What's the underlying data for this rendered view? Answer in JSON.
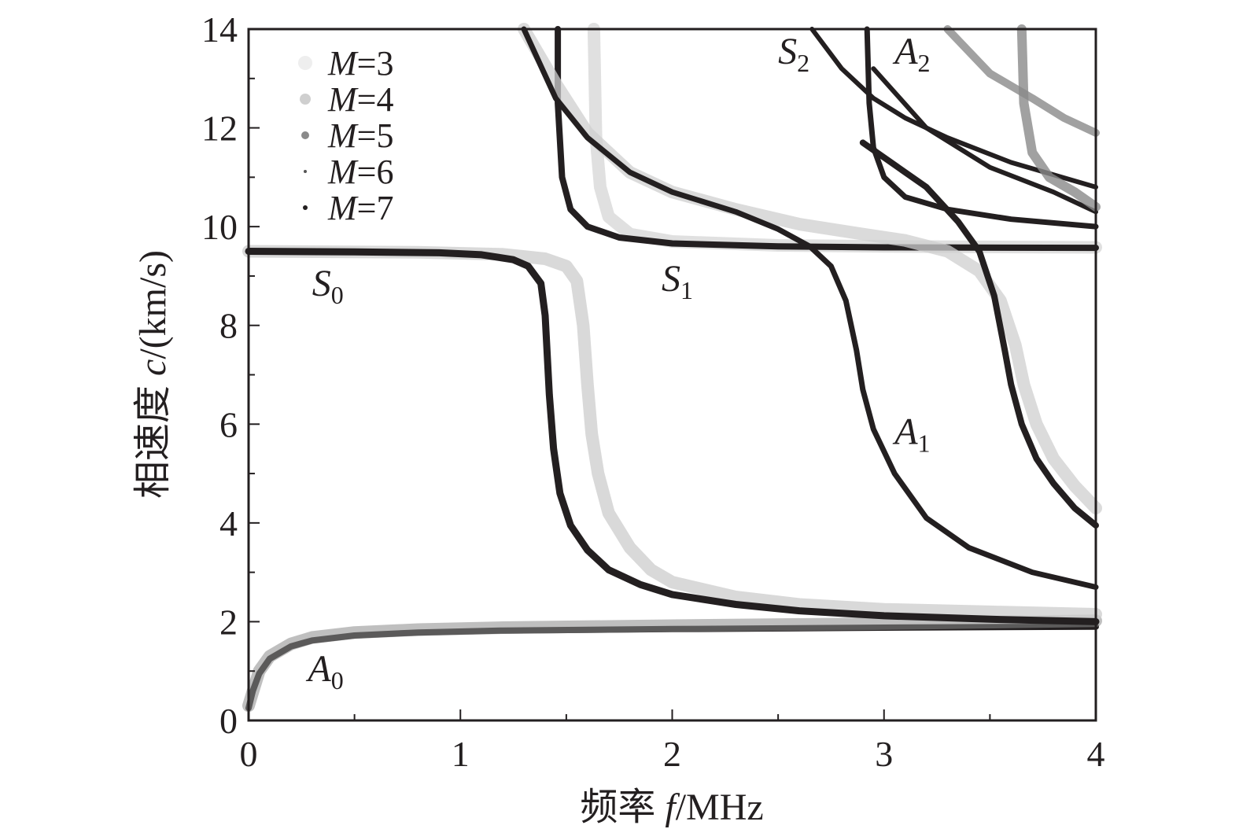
{
  "chart_data": {
    "type": "scatter",
    "xlabel": {
      "prefix": "频率 ",
      "var": "f",
      "unit": "/MHz"
    },
    "ylabel": {
      "prefix": "相速度 ",
      "var": "c",
      "unit": "/(km/s)"
    },
    "xlim": [
      0,
      4
    ],
    "ylim": [
      0,
      14
    ],
    "x_ticks": [
      "0",
      "1",
      "2",
      "3",
      "4"
    ],
    "y_ticks": [
      "0",
      "2",
      "4",
      "6",
      "8",
      "10",
      "12",
      "14"
    ],
    "grid": false,
    "legend_position": "top-left",
    "legend": [
      {
        "var": "M",
        "text": "=3",
        "color": "#eeeeee"
      },
      {
        "var": "M",
        "text": "=4",
        "color": "#cfcfcf"
      },
      {
        "var": "M",
        "text": "=5",
        "color": "#8a8a8a"
      },
      {
        "var": "M",
        "text": "=6",
        "color": "#555555"
      },
      {
        "var": "M",
        "text": "=7",
        "color": "#231f20"
      }
    ],
    "mode_labels": [
      {
        "letter": "S",
        "sub": "0",
        "x": 0.3,
        "y": 8.6
      },
      {
        "letter": "S",
        "sub": "1",
        "x": 1.95,
        "y": 8.7
      },
      {
        "letter": "S",
        "sub": "2",
        "x": 2.5,
        "y": 13.3
      },
      {
        "letter": "A",
        "sub": "0",
        "x": 0.28,
        "y": 0.8
      },
      {
        "letter": "A",
        "sub": "1",
        "x": 3.05,
        "y": 5.6
      },
      {
        "letter": "A",
        "sub": "2",
        "x": 3.05,
        "y": 13.3
      }
    ],
    "series": [
      {
        "mode": "A0",
        "color": "#231f20",
        "width": 8,
        "points": [
          [
            0.0,
            0.25
          ],
          [
            0.02,
            0.6
          ],
          [
            0.05,
            0.95
          ],
          [
            0.1,
            1.25
          ],
          [
            0.2,
            1.5
          ],
          [
            0.3,
            1.62
          ],
          [
            0.5,
            1.72
          ],
          [
            0.8,
            1.78
          ],
          [
            1.2,
            1.82
          ],
          [
            2,
            1.85
          ],
          [
            3,
            1.88
          ],
          [
            4,
            1.9
          ]
        ]
      },
      {
        "mode": "A0",
        "color": "#8a8a8a",
        "width": 16,
        "opacity": 0.55,
        "points": [
          [
            0.0,
            0.3
          ],
          [
            0.05,
            1.0
          ],
          [
            0.1,
            1.3
          ],
          [
            0.2,
            1.55
          ],
          [
            0.3,
            1.68
          ],
          [
            0.5,
            1.78
          ],
          [
            0.8,
            1.84
          ],
          [
            1.2,
            1.88
          ],
          [
            2,
            1.92
          ],
          [
            3,
            1.96
          ],
          [
            4,
            2.02
          ]
        ]
      },
      {
        "mode": "S0",
        "color": "#cfcfcf",
        "width": 16,
        "opacity": 0.8,
        "points": [
          [
            0.0,
            9.5
          ],
          [
            0.8,
            9.48
          ],
          [
            1.2,
            9.44
          ],
          [
            1.4,
            9.35
          ],
          [
            1.5,
            9.2
          ],
          [
            1.55,
            8.9
          ],
          [
            1.58,
            8.0
          ],
          [
            1.6,
            6.8
          ],
          [
            1.62,
            5.8
          ],
          [
            1.65,
            5.0
          ],
          [
            1.7,
            4.2
          ],
          [
            1.8,
            3.5
          ],
          [
            1.9,
            3.05
          ],
          [
            2,
            2.8
          ],
          [
            2.3,
            2.5
          ],
          [
            2.6,
            2.35
          ],
          [
            3,
            2.25
          ],
          [
            3.5,
            2.2
          ],
          [
            4,
            2.15
          ]
        ]
      },
      {
        "mode": "S0",
        "color": "#231f20",
        "width": 9,
        "points": [
          [
            0.0,
            9.5
          ],
          [
            0.5,
            9.49
          ],
          [
            0.9,
            9.47
          ],
          [
            1.1,
            9.43
          ],
          [
            1.25,
            9.33
          ],
          [
            1.32,
            9.2
          ],
          [
            1.38,
            8.85
          ],
          [
            1.4,
            8.2
          ],
          [
            1.42,
            6.6
          ],
          [
            1.44,
            5.5
          ],
          [
            1.47,
            4.6
          ],
          [
            1.52,
            3.95
          ],
          [
            1.6,
            3.45
          ],
          [
            1.7,
            3.05
          ],
          [
            1.85,
            2.75
          ],
          [
            2,
            2.55
          ],
          [
            2.3,
            2.35
          ],
          [
            2.6,
            2.22
          ],
          [
            3,
            2.12
          ],
          [
            3.5,
            2.05
          ],
          [
            4,
            2.0
          ]
        ]
      },
      {
        "mode": "S1",
        "color": "#dddddd",
        "width": 16,
        "opacity": 0.9,
        "points": [
          [
            1.63,
            14
          ],
          [
            1.64,
            11.8
          ],
          [
            1.66,
            10.8
          ],
          [
            1.7,
            10.2
          ],
          [
            1.8,
            9.85
          ],
          [
            2,
            9.7
          ],
          [
            2.5,
            9.62
          ],
          [
            3,
            9.6
          ],
          [
            4,
            9.58
          ]
        ]
      },
      {
        "mode": "S1",
        "color": "#231f20",
        "width": 8,
        "points": [
          [
            1.46,
            14
          ],
          [
            1.46,
            12.5
          ],
          [
            1.48,
            11.0
          ],
          [
            1.52,
            10.35
          ],
          [
            1.6,
            10.0
          ],
          [
            1.75,
            9.78
          ],
          [
            2,
            9.66
          ],
          [
            2.5,
            9.6
          ],
          [
            3,
            9.58
          ],
          [
            4,
            9.57
          ]
        ]
      },
      {
        "mode": "A1",
        "color": "#cfcfcf",
        "width": 16,
        "opacity": 0.75,
        "points": [
          [
            1.3,
            14
          ],
          [
            1.45,
            12.9
          ],
          [
            1.6,
            11.9
          ],
          [
            1.8,
            11.1
          ],
          [
            2,
            10.7
          ],
          [
            2.3,
            10.35
          ],
          [
            2.6,
            10.05
          ],
          [
            2.9,
            9.85
          ],
          [
            3.1,
            9.72
          ],
          [
            3.3,
            9.5
          ],
          [
            3.45,
            9.1
          ],
          [
            3.55,
            8.5
          ],
          [
            3.62,
            7.6
          ],
          [
            3.66,
            6.8
          ],
          [
            3.72,
            6.0
          ],
          [
            3.8,
            5.3
          ],
          [
            3.9,
            4.75
          ],
          [
            4,
            4.3
          ]
        ]
      },
      {
        "mode": "A1",
        "color": "#231f20",
        "width": 7,
        "points": [
          [
            1.3,
            14
          ],
          [
            1.45,
            12.6
          ],
          [
            1.6,
            11.8
          ],
          [
            1.8,
            11.1
          ],
          [
            2,
            10.7
          ],
          [
            2.3,
            10.3
          ],
          [
            2.5,
            9.95
          ],
          [
            2.65,
            9.6
          ],
          [
            2.75,
            9.2
          ],
          [
            2.82,
            8.5
          ],
          [
            2.87,
            7.5
          ],
          [
            2.9,
            6.7
          ],
          [
            2.95,
            5.9
          ],
          [
            3.05,
            5.0
          ],
          [
            3.2,
            4.1
          ],
          [
            3.4,
            3.5
          ],
          [
            3.7,
            3.0
          ],
          [
            4,
            2.7
          ]
        ]
      },
      {
        "mode": "S1b",
        "color": "#231f20",
        "width": 8,
        "points": [
          [
            2.9,
            11.7
          ],
          [
            3.2,
            10.8
          ],
          [
            3.35,
            10.1
          ],
          [
            3.45,
            9.5
          ],
          [
            3.52,
            8.6
          ],
          [
            3.57,
            7.5
          ],
          [
            3.6,
            6.8
          ],
          [
            3.65,
            6.0
          ],
          [
            3.72,
            5.3
          ],
          [
            3.8,
            4.8
          ],
          [
            3.9,
            4.3
          ],
          [
            4,
            3.95
          ]
        ]
      },
      {
        "mode": "S2",
        "color": "#231f20",
        "width": 6,
        "points": [
          [
            2.66,
            14
          ],
          [
            2.8,
            13.2
          ],
          [
            2.95,
            12.6
          ],
          [
            3.1,
            12.2
          ],
          [
            3.3,
            11.8
          ],
          [
            3.6,
            11.3
          ],
          [
            4,
            10.8
          ]
        ]
      },
      {
        "mode": "A2",
        "color": "#231f20",
        "width": 7,
        "points": [
          [
            2.92,
            14
          ],
          [
            2.93,
            12.5
          ],
          [
            2.95,
            11.6
          ],
          [
            3.0,
            11.0
          ],
          [
            3.1,
            10.6
          ],
          [
            3.3,
            10.35
          ],
          [
            3.6,
            10.15
          ],
          [
            4,
            10.0
          ]
        ]
      },
      {
        "mode": "S3",
        "color": "#231f20",
        "width": 6,
        "points": [
          [
            2.95,
            13.2
          ],
          [
            3.2,
            12.0
          ],
          [
            3.5,
            11.2
          ],
          [
            3.8,
            10.7
          ],
          [
            4,
            10.3
          ]
        ]
      },
      {
        "mode": "A3",
        "color": "#8a8a8a",
        "width": 12,
        "opacity": 0.8,
        "points": [
          [
            3.65,
            14
          ],
          [
            3.66,
            12.5
          ],
          [
            3.7,
            11.5
          ],
          [
            3.78,
            11.0
          ],
          [
            3.9,
            10.7
          ],
          [
            4,
            10.4
          ]
        ]
      },
      {
        "mode": "S3b",
        "color": "#8a8a8a",
        "width": 10,
        "opacity": 0.8,
        "points": [
          [
            3.3,
            14
          ],
          [
            3.5,
            13.1
          ],
          [
            3.7,
            12.6
          ],
          [
            3.85,
            12.2
          ],
          [
            4,
            11.9
          ]
        ]
      }
    ]
  }
}
